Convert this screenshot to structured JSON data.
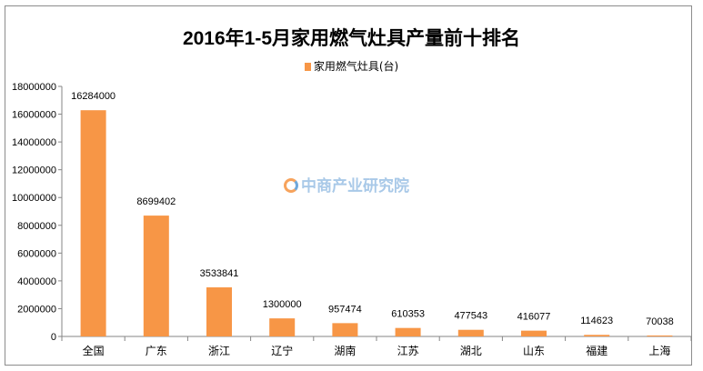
{
  "chart_data": {
    "type": "bar",
    "title": "2016年1-5月家用燃气灶具产量前十排名",
    "legend": [
      "家用燃气灶具(台)"
    ],
    "legend_position": "top",
    "categories": [
      "全国",
      "广东",
      "浙江",
      "辽宁",
      "湖南",
      "江苏",
      "湖北",
      "山东",
      "福建",
      "上海"
    ],
    "values": [
      16284000,
      8699402,
      3533841,
      1300000,
      957474,
      610353,
      477543,
      416077,
      114623,
      70038
    ],
    "data_labels": [
      "16284000",
      "8699402",
      "3533841",
      "1300000",
      "957474",
      "610353",
      "477543",
      "416077",
      "114623",
      "70038"
    ],
    "ylim": [
      0,
      18000000
    ],
    "yticks": [
      "0",
      "2000000",
      "4000000",
      "6000000",
      "8000000",
      "10000000",
      "12000000",
      "14000000",
      "16000000",
      "18000000"
    ],
    "xlabel": "",
    "ylabel": "",
    "grid": false,
    "bar_color": "#f79646"
  },
  "watermark": "中商产业研究院"
}
